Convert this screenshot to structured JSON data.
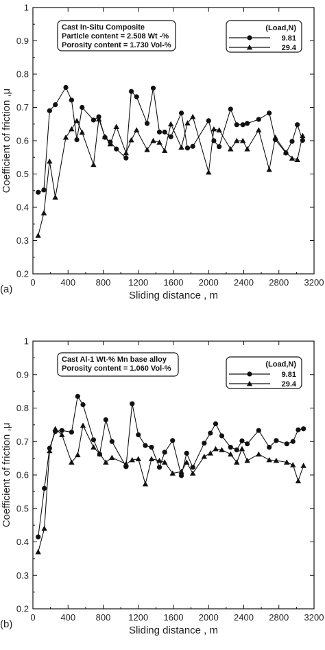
{
  "chart_data": [
    {
      "type": "line",
      "panel_label": "(a)",
      "xlabel": "Sliding distance , m",
      "ylabel": "Coefficient of friction ,μ",
      "xlim": [
        0,
        3200
      ],
      "ylim": [
        0.2,
        1.0
      ],
      "x_ticks": [
        "0",
        "400",
        "800",
        "1200",
        "1600",
        "2000",
        "2400",
        "2800",
        "3200"
      ],
      "y_ticks": [
        "0.2",
        "0.3",
        "0.4",
        "0.5",
        "0.6",
        "0.7",
        "0.8",
        "0.9",
        "1"
      ],
      "info_box": [
        "Cast In-Situ Composite",
        "Particle content  = 2.508 Wt -%",
        "Porosity content = 1.730 Vol-%"
      ],
      "legend_title": "(Load,N)",
      "legend_position": "top-right",
      "series": [
        {
          "name": "9.81",
          "marker": "circle",
          "x": [
            60,
            125,
            190,
            255,
            375,
            440,
            500,
            560,
            690,
            750,
            820,
            880,
            950,
            1060,
            1120,
            1180,
            1300,
            1370,
            1440,
            1500,
            1570,
            1690,
            1760,
            1820,
            2000,
            2060,
            2120,
            2250,
            2320,
            2390,
            2440,
            2570,
            2690,
            2760,
            2880,
            2950,
            3010,
            3070
          ],
          "y": [
            0.445,
            0.452,
            0.69,
            0.708,
            0.76,
            0.722,
            0.603,
            0.7,
            0.662,
            0.672,
            0.61,
            0.596,
            0.575,
            0.548,
            0.748,
            0.732,
            0.652,
            0.758,
            0.626,
            0.626,
            0.612,
            0.683,
            0.578,
            0.583,
            0.66,
            0.6,
            0.582,
            0.695,
            0.648,
            0.648,
            0.652,
            0.664,
            0.683,
            0.603,
            0.563,
            0.598,
            0.648,
            0.601
          ]
        },
        {
          "name": "29.4",
          "marker": "triangle",
          "x": [
            60,
            125,
            190,
            255,
            375,
            440,
            500,
            560,
            690,
            750,
            820,
            880,
            950,
            1060,
            1120,
            1180,
            1300,
            1370,
            1440,
            1500,
            1570,
            1690,
            1760,
            1820,
            2000,
            2060,
            2120,
            2250,
            2320,
            2390,
            2440,
            2570,
            2690,
            2760,
            2880,
            2950,
            3010,
            3070
          ],
          "y": [
            0.315,
            0.383,
            0.538,
            0.43,
            0.61,
            0.635,
            0.66,
            0.625,
            0.528,
            0.665,
            0.612,
            0.59,
            0.642,
            0.563,
            0.602,
            0.632,
            0.573,
            0.6,
            0.595,
            0.57,
            0.65,
            0.58,
            0.653,
            0.672,
            0.505,
            0.635,
            0.632,
            0.575,
            0.6,
            0.6,
            0.575,
            0.632,
            0.513,
            0.61,
            0.565,
            0.547,
            0.543,
            0.615
          ]
        }
      ]
    },
    {
      "type": "line",
      "panel_label": "(b)",
      "xlabel": "Sliding distance , m",
      "ylabel": "Coefficient of friction ,μ",
      "xlim": [
        0,
        3200
      ],
      "ylim": [
        0.2,
        1.0
      ],
      "x_ticks": [
        "0",
        "400",
        "800",
        "1200",
        "1600",
        "2000",
        "2400",
        "2800",
        "3200"
      ],
      "y_ticks": [
        "0.2",
        "0.3",
        "0.4",
        "0.5",
        "0.6",
        "0.7",
        "0.8",
        "0.9",
        "1"
      ],
      "info_box": [
        "Cast Al-1 Wt-% Mn base alloy",
        "Porosity content = 1.060 Vol-%"
      ],
      "legend_title": "(Load,N)",
      "legend_position": "top-right",
      "series": [
        {
          "name": "9.81",
          "marker": "circle",
          "x": [
            60,
            130,
            190,
            255,
            330,
            440,
            510,
            570,
            690,
            760,
            830,
            900,
            1060,
            1130,
            1200,
            1280,
            1350,
            1440,
            1500,
            1590,
            1690,
            1750,
            1820,
            1950,
            2020,
            2080,
            2150,
            2250,
            2320,
            2380,
            2440,
            2570,
            2690,
            2770,
            2890,
            2960,
            3020,
            3080
          ],
          "y": [
            0.415,
            0.56,
            0.68,
            0.73,
            0.733,
            0.728,
            0.835,
            0.81,
            0.705,
            0.662,
            0.765,
            0.7,
            0.625,
            0.813,
            0.72,
            0.688,
            0.683,
            0.623,
            0.668,
            0.703,
            0.598,
            0.665,
            0.623,
            0.695,
            0.725,
            0.753,
            0.717,
            0.683,
            0.675,
            0.702,
            0.693,
            0.733,
            0.683,
            0.703,
            0.693,
            0.7,
            0.735,
            0.738
          ]
        },
        {
          "name": "29.4",
          "marker": "triangle",
          "x": [
            60,
            130,
            190,
            255,
            330,
            440,
            510,
            570,
            690,
            760,
            830,
            900,
            1060,
            1130,
            1200,
            1280,
            1350,
            1440,
            1500,
            1590,
            1690,
            1750,
            1820,
            1950,
            2020,
            2080,
            2150,
            2250,
            2320,
            2380,
            2440,
            2570,
            2690,
            2770,
            2890,
            2960,
            3020,
            3080
          ],
          "y": [
            0.37,
            0.44,
            0.672,
            0.738,
            0.72,
            0.638,
            0.66,
            0.748,
            0.683,
            0.663,
            0.638,
            0.652,
            0.633,
            0.645,
            0.648,
            0.573,
            0.648,
            0.643,
            0.638,
            0.605,
            0.61,
            0.638,
            0.605,
            0.655,
            0.665,
            0.678,
            0.675,
            0.662,
            0.638,
            0.678,
            0.643,
            0.662,
            0.645,
            0.643,
            0.638,
            0.63,
            0.582,
            0.628
          ]
        }
      ]
    }
  ]
}
